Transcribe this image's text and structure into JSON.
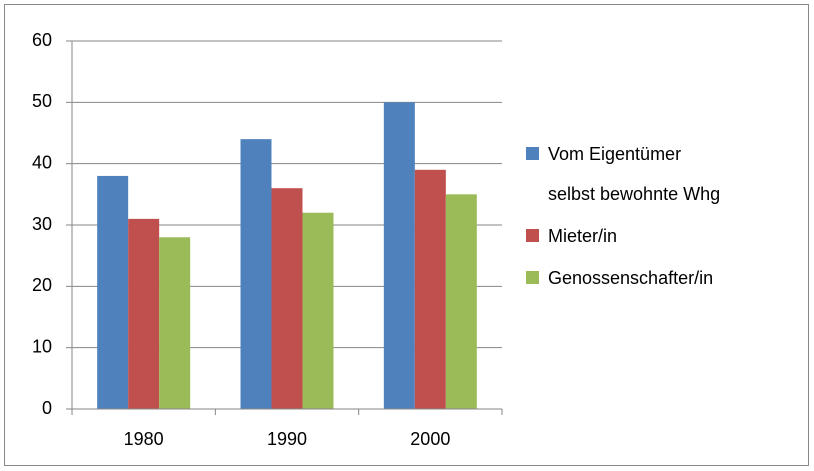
{
  "chart_data": {
    "type": "bar",
    "categories": [
      "1980",
      "1990",
      "2000"
    ],
    "series": [
      {
        "name": "Vom Eigentümer selbst bewohnte Whg",
        "color": "#4f81bd",
        "values": [
          38,
          44,
          50
        ]
      },
      {
        "name": "Mieter/in",
        "color": "#c0504d",
        "values": [
          31,
          36,
          39
        ]
      },
      {
        "name": "Genossenschafter/in",
        "color": "#9bbb59",
        "values": [
          28,
          32,
          35
        ]
      }
    ],
    "ylim": [
      0,
      60
    ],
    "yticks": [
      0,
      10,
      20,
      30,
      40,
      50,
      60
    ],
    "grid": true,
    "legend": "right"
  }
}
